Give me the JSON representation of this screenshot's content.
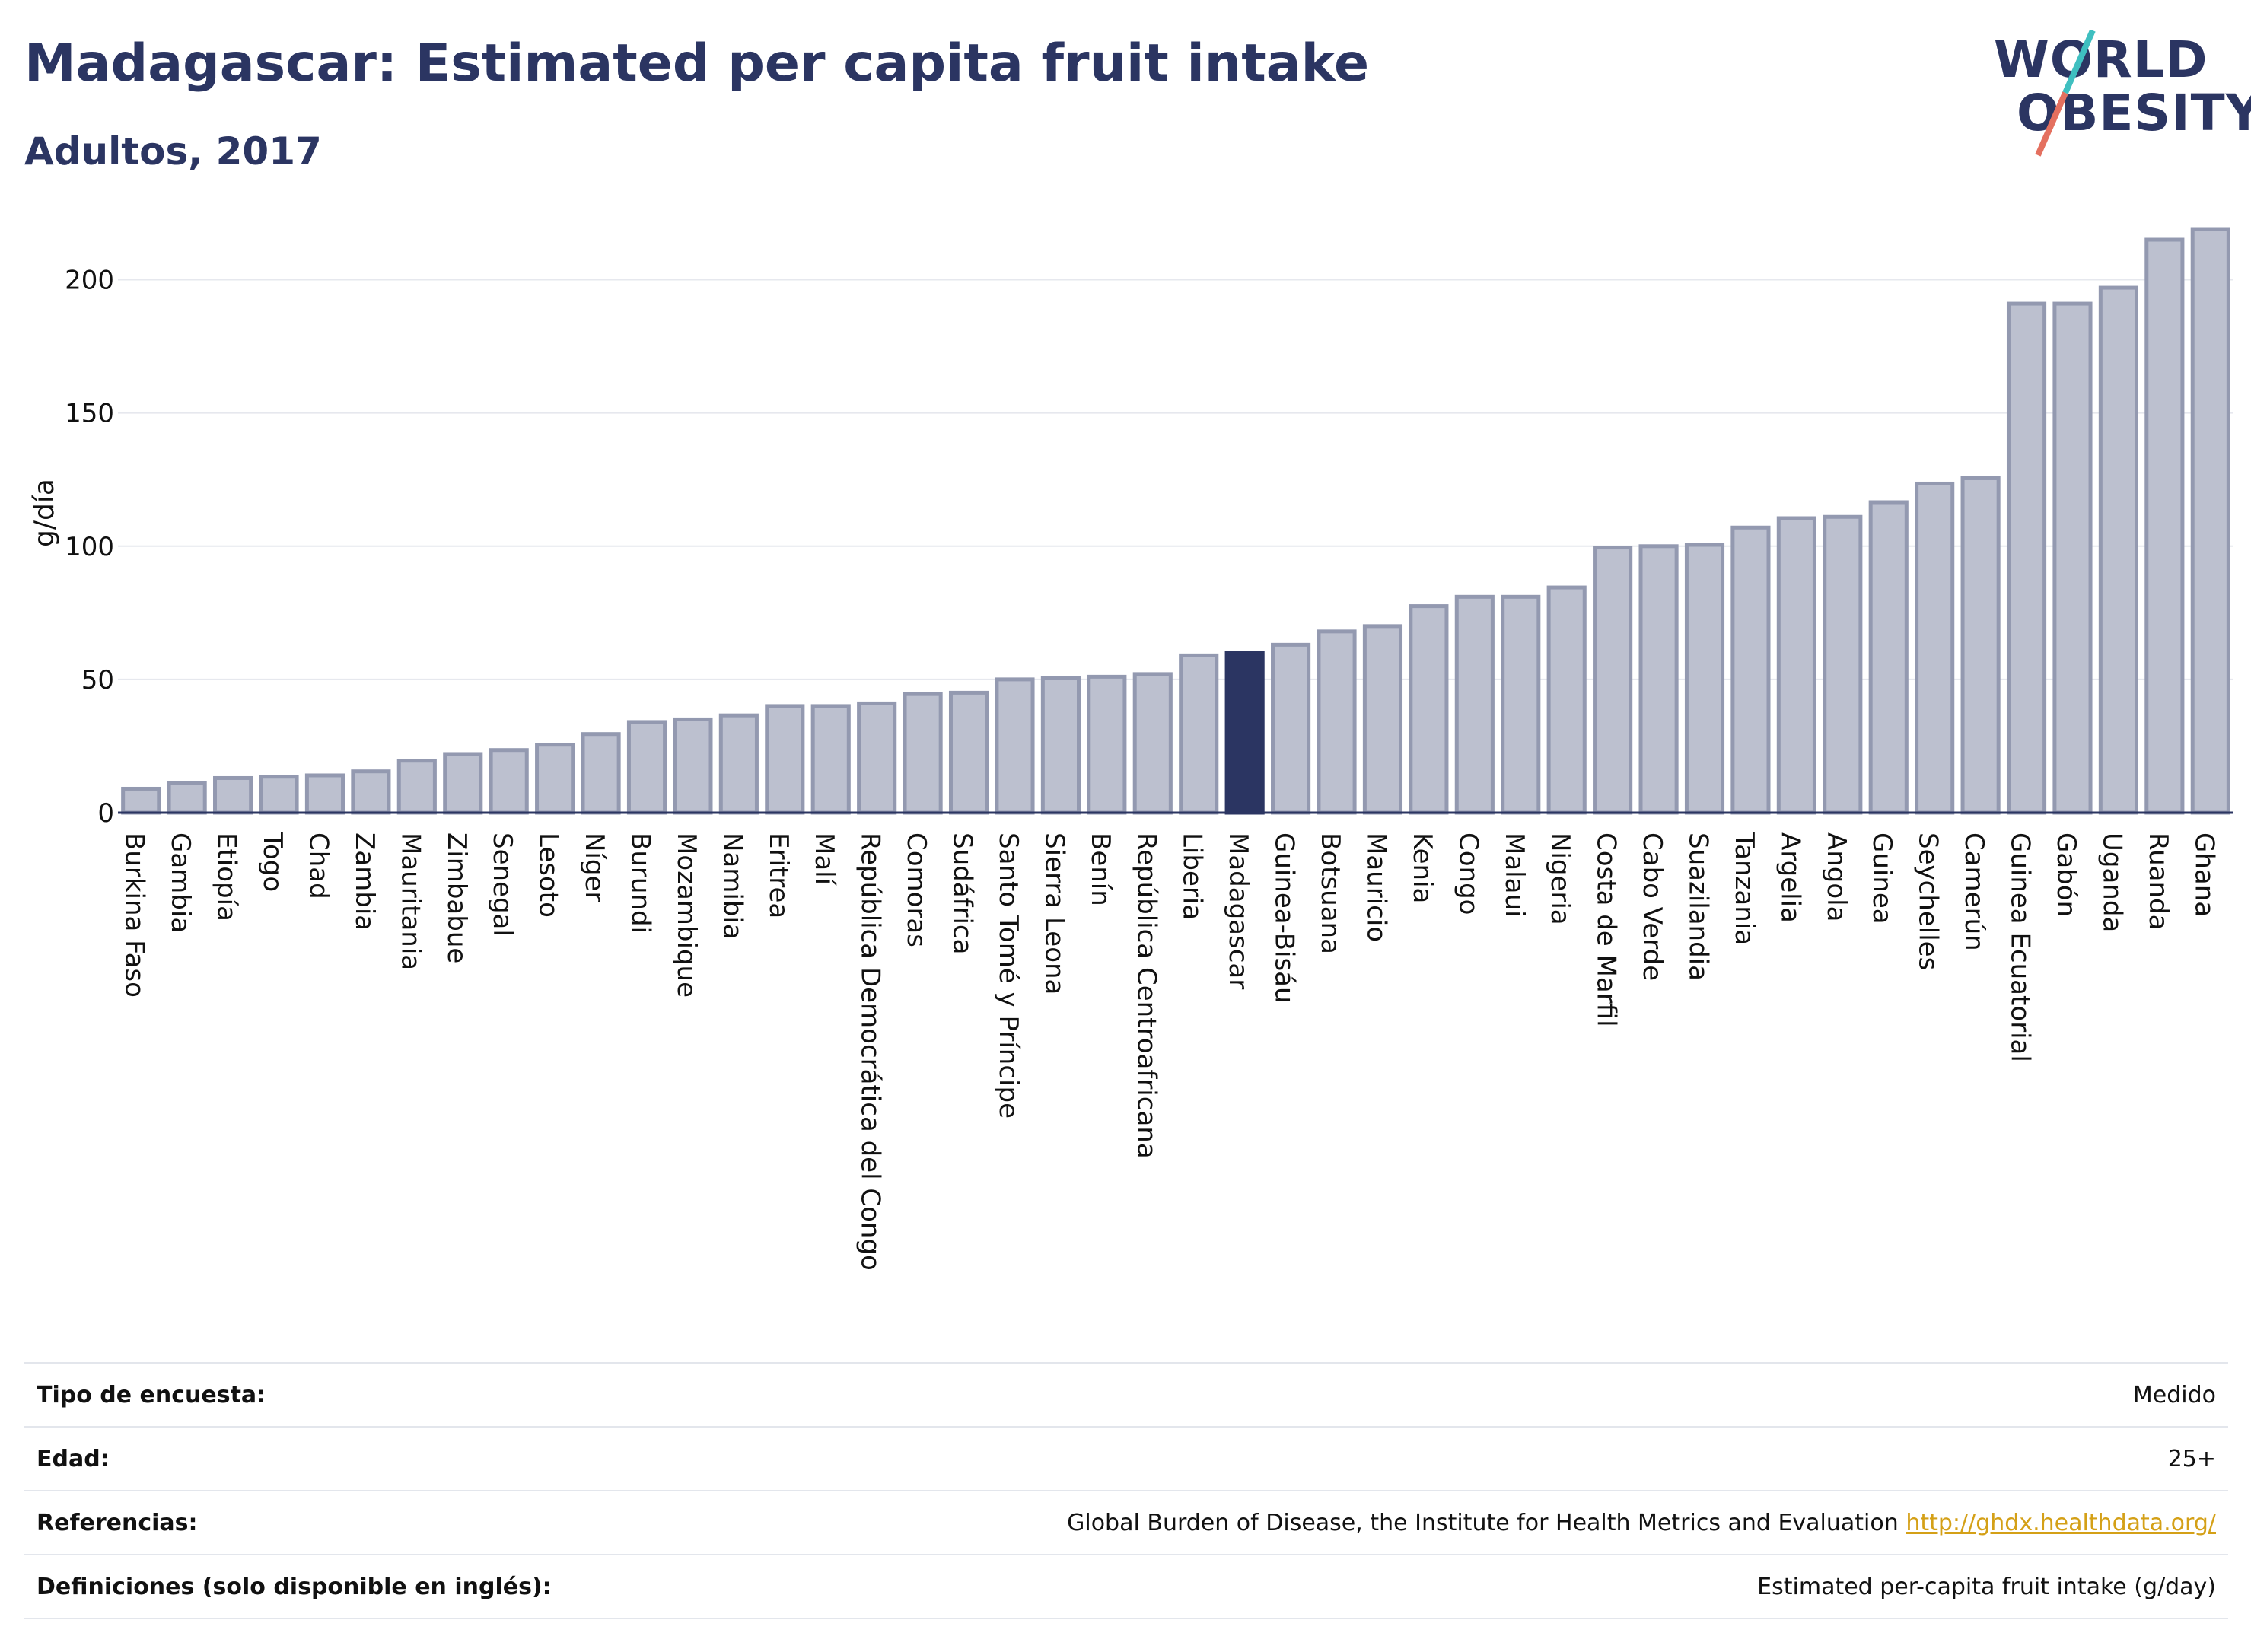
{
  "header": {
    "title": "Madagascar: Estimated per capita fruit intake",
    "subtitle": "Adultos, 2017"
  },
  "logo": {
    "line1": "WORLD",
    "line2": "OBESITY"
  },
  "colors": {
    "bar_fill": "#bcc0cf",
    "bar_stroke": "#9399b0",
    "highlight": "#2b3562",
    "grid": "#e6e8ee",
    "text_dark": "#2b3562",
    "logo_slash_teal": "#3fbfc0",
    "logo_slash_coral": "#e4705f"
  },
  "chart_data": {
    "type": "bar",
    "ylabel": "g/día",
    "ylim": [
      0,
      225
    ],
    "yticks": [
      0,
      50,
      100,
      150,
      200
    ],
    "grid": true,
    "highlight_category": "Madagascar",
    "categories": [
      "Burkina Faso",
      "Gambia",
      "Etiopía",
      "Togo",
      "Chad",
      "Zambia",
      "Mauritania",
      "Zimbabue",
      "Senegal",
      "Lesoto",
      "Níger",
      "Burundi",
      "Mozambique",
      "Namibia",
      "Eritrea",
      "Malí",
      "República Democrática del Congo",
      "Comoras",
      "Sudáfrica",
      "Santo Tomé y Príncipe",
      "Sierra Leona",
      "Benín",
      "República Centroafricana",
      "Liberia",
      "Madagascar",
      "Guinea-Bisáu",
      "Botsuana",
      "Mauricio",
      "Kenia",
      "Congo",
      "Malaui",
      "Nigeria",
      "Costa de Marfil",
      "Cabo Verde",
      "Suazilandia",
      "Tanzania",
      "Argelia",
      "Angola",
      "Guinea",
      "Seychelles",
      "Camerún",
      "Guinea Ecuatorial",
      "Gabón",
      "Uganda",
      "Ruanda",
      "Ghana"
    ],
    "values": [
      9,
      11,
      13,
      13.5,
      14,
      15.5,
      19.5,
      22,
      23.5,
      25.5,
      29.5,
      34,
      35,
      36.5,
      40,
      40,
      41,
      44.5,
      45,
      50,
      50.5,
      51,
      52,
      59,
      60,
      63,
      68,
      70,
      77.5,
      81,
      81,
      84.5,
      99.5,
      100,
      100.5,
      107,
      110.5,
      111,
      116.5,
      123.5,
      125.5,
      191,
      191,
      197,
      215,
      219
    ]
  },
  "info": [
    {
      "key": "Tipo de encuesta:",
      "value": "Medido"
    },
    {
      "key": "Edad:",
      "value": "25+"
    },
    {
      "key": "Referencias:",
      "value": "Global Burden of Disease, the Institute for Health Metrics and Evaluation",
      "link": "http://ghdx.healthdata.org/"
    },
    {
      "key": "Definiciones (solo disponible en inglés):",
      "value": "Estimated per-capita fruit intake (g/day)"
    }
  ]
}
